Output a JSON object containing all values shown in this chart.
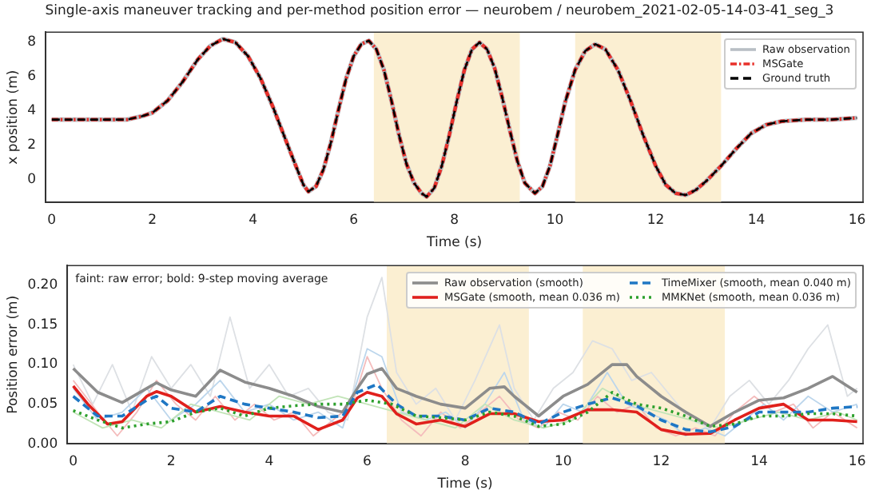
{
  "chart_data": [
    {
      "type": "line",
      "title": "Single-axis maneuver tracking and per-method position error — neurobem / neurobem_2021-02-05-14-03-41_seg_3",
      "xlabel": "Time (s)",
      "ylabel": "x position (m)",
      "xlim": [
        -0.12,
        16.12
      ],
      "xticks": [
        0,
        2,
        4,
        6,
        8,
        10,
        12,
        14,
        16
      ],
      "ylim": [
        -1.33,
        8.6
      ],
      "yticks": [
        0,
        2,
        4,
        6,
        8
      ],
      "legend": "top right",
      "grid": false,
      "bands": [
        {
          "axis": "x",
          "from": 6.4,
          "to": 9.3,
          "color": "#fbefd2"
        },
        {
          "axis": "x",
          "from": 10.4,
          "to": 13.3,
          "color": "#fbefd2"
        }
      ],
      "x": [
        0,
        0.5,
        1,
        1.5,
        1.8,
        2.0,
        2.3,
        2.6,
        2.9,
        3.15,
        3.4,
        3.65,
        3.9,
        4.15,
        4.4,
        4.65,
        4.85,
        5.0,
        5.1,
        5.25,
        5.4,
        5.55,
        5.7,
        5.85,
        6.0,
        6.15,
        6.3,
        6.45,
        6.6,
        6.75,
        6.9,
        7.05,
        7.2,
        7.35,
        7.45,
        7.6,
        7.75,
        7.9,
        8.05,
        8.2,
        8.35,
        8.5,
        8.65,
        8.8,
        8.95,
        9.1,
        9.25,
        9.4,
        9.6,
        9.75,
        9.9,
        10.05,
        10.2,
        10.4,
        10.6,
        10.8,
        11.0,
        11.25,
        11.5,
        11.75,
        12.0,
        12.2,
        12.4,
        12.6,
        12.8,
        13.0,
        13.3,
        13.6,
        13.9,
        14.2,
        14.5,
        15,
        15.5,
        16
      ],
      "series": [
        {
          "name": "Raw observation",
          "color": "#b8bec4",
          "line_style": "solid",
          "values": [
            3.5,
            3.5,
            3.5,
            3.5,
            3.7,
            3.9,
            4.6,
            5.7,
            7.0,
            7.8,
            8.2,
            8.0,
            7.2,
            5.9,
            4.2,
            2.3,
            0.8,
            -0.3,
            -0.7,
            -0.4,
            0.6,
            2.2,
            4.1,
            5.9,
            7.2,
            7.9,
            8.1,
            7.6,
            6.4,
            4.6,
            2.6,
            0.9,
            -0.2,
            -0.8,
            -1.0,
            -0.5,
            0.8,
            2.6,
            4.6,
            6.4,
            7.6,
            8.0,
            7.6,
            6.5,
            4.8,
            2.9,
            1.1,
            -0.2,
            -0.8,
            -0.4,
            0.8,
            2.6,
            4.5,
            6.4,
            7.5,
            7.9,
            7.6,
            6.4,
            4.6,
            2.6,
            0.8,
            -0.3,
            -0.8,
            -0.9,
            -0.6,
            -0.1,
            0.8,
            1.8,
            2.7,
            3.2,
            3.4,
            3.5,
            3.5,
            3.6
          ]
        },
        {
          "name": "MSGate",
          "color": "#e8302a",
          "line_style": "dashdot",
          "values": [
            3.5,
            3.5,
            3.5,
            3.5,
            3.7,
            3.9,
            4.6,
            5.7,
            7.0,
            7.8,
            8.2,
            8.0,
            7.2,
            5.9,
            4.2,
            2.3,
            0.8,
            -0.3,
            -0.7,
            -0.4,
            0.6,
            2.2,
            4.1,
            5.9,
            7.2,
            7.9,
            8.1,
            7.6,
            6.4,
            4.6,
            2.6,
            0.9,
            -0.2,
            -0.8,
            -1.0,
            -0.5,
            0.8,
            2.6,
            4.6,
            6.4,
            7.6,
            8.0,
            7.6,
            6.5,
            4.8,
            2.9,
            1.1,
            -0.2,
            -0.8,
            -0.4,
            0.8,
            2.6,
            4.5,
            6.4,
            7.5,
            7.9,
            7.6,
            6.4,
            4.6,
            2.6,
            0.8,
            -0.3,
            -0.8,
            -0.9,
            -0.6,
            -0.1,
            0.8,
            1.8,
            2.7,
            3.2,
            3.4,
            3.5,
            3.5,
            3.6
          ]
        },
        {
          "name": "Ground truth",
          "color": "#000000",
          "line_style": "dashed",
          "values": [
            3.5,
            3.5,
            3.5,
            3.5,
            3.7,
            3.9,
            4.6,
            5.7,
            7.0,
            7.8,
            8.2,
            8.0,
            7.2,
            5.9,
            4.2,
            2.3,
            0.8,
            -0.3,
            -0.7,
            -0.4,
            0.6,
            2.2,
            4.1,
            5.9,
            7.2,
            7.9,
            8.1,
            7.6,
            6.4,
            4.6,
            2.6,
            0.9,
            -0.2,
            -0.8,
            -1.0,
            -0.5,
            0.8,
            2.6,
            4.6,
            6.4,
            7.6,
            8.0,
            7.6,
            6.5,
            4.8,
            2.9,
            1.1,
            -0.2,
            -0.8,
            -0.4,
            0.8,
            2.6,
            4.5,
            6.4,
            7.5,
            7.9,
            7.6,
            6.4,
            4.6,
            2.6,
            0.8,
            -0.3,
            -0.8,
            -0.9,
            -0.6,
            -0.1,
            0.8,
            1.8,
            2.7,
            3.2,
            3.4,
            3.5,
            3.5,
            3.6
          ]
        }
      ]
    },
    {
      "type": "line",
      "xlabel": "Time (s)",
      "ylabel": "Position error (m)",
      "xlim": [
        -0.12,
        16.12
      ],
      "xticks": [
        0,
        2,
        4,
        6,
        8,
        10,
        12,
        14,
        16
      ],
      "ylim": [
        0,
        0.225
      ],
      "yticks": [
        {
          "value": 0,
          "label": "0.00"
        },
        {
          "value": 0.05,
          "label": "0.05"
        },
        {
          "value": 0.1,
          "label": "0.10"
        },
        {
          "value": 0.15,
          "label": "0.15"
        },
        {
          "value": 0.2,
          "label": "0.20"
        }
      ],
      "legend": "top right",
      "grid": false,
      "annotations": [
        "faint: raw error; bold: 9-step moving average"
      ],
      "bands": [
        {
          "axis": "x",
          "from": 6.4,
          "to": 9.3,
          "color": "#fbefd2"
        },
        {
          "axis": "x",
          "from": 10.4,
          "to": 13.3,
          "color": "#fbefd2"
        }
      ],
      "series": [
        {
          "color": "#dde0e4",
          "line_style": "solid",
          "x": [
            0,
            0.4,
            0.8,
            1.2,
            1.6,
            2,
            2.4,
            2.8,
            3.2,
            3.6,
            4,
            4.4,
            4.8,
            5.2,
            5.6,
            6,
            6.3,
            6.6,
            7,
            7.4,
            7.8,
            8.2,
            8.7,
            9,
            9.4,
            9.8,
            10.2,
            10.6,
            11,
            11.4,
            11.8,
            12.2,
            12.6,
            13,
            13.4,
            13.8,
            14.2,
            14.6,
            15,
            15.4,
            15.8,
            16
          ],
          "values": [
            0.1,
            0.05,
            0.1,
            0.04,
            0.11,
            0.07,
            0.1,
            0.06,
            0.16,
            0.07,
            0.1,
            0.06,
            0.07,
            0.04,
            0.03,
            0.16,
            0.21,
            0.09,
            0.05,
            0.07,
            0.03,
            0.08,
            0.15,
            0.07,
            0.03,
            0.07,
            0.09,
            0.13,
            0.12,
            0.08,
            0.09,
            0.06,
            0.03,
            0.02,
            0.06,
            0.08,
            0.05,
            0.08,
            0.12,
            0.15,
            0.06,
            0.07
          ]
        },
        {
          "color": "#f4bcbc",
          "line_style": "solid",
          "x": [
            0,
            0.5,
            0.9,
            1.3,
            1.7,
            2.1,
            2.5,
            2.9,
            3.3,
            3.7,
            4.1,
            4.5,
            4.9,
            5.3,
            5.7,
            6,
            6.3,
            6.7,
            7.1,
            7.5,
            7.9,
            8.3,
            8.7,
            9.1,
            9.5,
            9.9,
            10.3,
            10.7,
            11.1,
            11.5,
            11.9,
            12.3,
            12.7,
            13.1,
            13.5,
            13.9,
            14.3,
            14.7,
            15.1,
            15.5,
            16
          ],
          "values": [
            0.08,
            0.04,
            0.01,
            0.04,
            0.08,
            0.05,
            0.03,
            0.06,
            0.03,
            0.05,
            0.03,
            0.04,
            0.01,
            0.03,
            0.05,
            0.11,
            0.07,
            0.03,
            0.01,
            0.04,
            0.02,
            0.04,
            0.06,
            0.03,
            0.02,
            0.04,
            0.03,
            0.06,
            0.04,
            0.05,
            0.02,
            0.01,
            0.02,
            0.01,
            0.04,
            0.06,
            0.04,
            0.05,
            0.02,
            0.04,
            0.02
          ]
        },
        {
          "color": "#bcd6ec",
          "line_style": "solid",
          "x": [
            0,
            0.5,
            1,
            1.5,
            2,
            2.5,
            3,
            3.5,
            4,
            4.5,
            5,
            5.5,
            6,
            6.3,
            6.7,
            7.2,
            7.6,
            8,
            8.4,
            8.8,
            9.2,
            9.6,
            10,
            10.4,
            10.9,
            11.3,
            11.7,
            12.1,
            12.5,
            12.9,
            13.3,
            13.7,
            14.1,
            14.5,
            15,
            15.5,
            16
          ],
          "values": [
            0.07,
            0.03,
            0.04,
            0.07,
            0.03,
            0.05,
            0.08,
            0.04,
            0.05,
            0.03,
            0.04,
            0.02,
            0.12,
            0.11,
            0.04,
            0.03,
            0.04,
            0.02,
            0.05,
            0.09,
            0.03,
            0.02,
            0.05,
            0.04,
            0.09,
            0.05,
            0.04,
            0.03,
            0.01,
            0.02,
            0.01,
            0.03,
            0.05,
            0.03,
            0.06,
            0.04,
            0.05
          ]
        },
        {
          "color": "#c2e4b8",
          "line_style": "solid",
          "x": [
            0,
            0.6,
            1.2,
            1.8,
            2.4,
            3,
            3.6,
            4.2,
            4.8,
            5.4,
            6,
            6.6,
            7.2,
            7.8,
            8.4,
            9,
            9.6,
            10.2,
            10.8,
            11.4,
            12,
            12.6,
            13.2,
            13.8,
            14.4,
            15,
            15.6,
            16
          ],
          "values": [
            0.04,
            0.02,
            0.03,
            0.02,
            0.05,
            0.04,
            0.03,
            0.06,
            0.05,
            0.06,
            0.05,
            0.04,
            0.03,
            0.02,
            0.05,
            0.03,
            0.02,
            0.03,
            0.07,
            0.05,
            0.04,
            0.03,
            0.02,
            0.03,
            0.04,
            0.03,
            0.04,
            0.03
          ]
        },
        {
          "name": "Raw observation (smooth)",
          "color": "#8c8c8c",
          "line_style": "solid",
          "x": [
            0,
            0.5,
            1,
            1.5,
            1.7,
            2,
            2.5,
            3,
            3.5,
            4,
            4.5,
            5,
            5.5,
            5.8,
            6,
            6.3,
            6.6,
            7,
            7.5,
            8,
            8.5,
            8.8,
            9,
            9.5,
            10,
            10.5,
            11,
            11.3,
            11.5,
            12,
            12.5,
            13,
            13.5,
            14,
            14.5,
            15,
            15.5,
            16
          ],
          "values": [
            0.095,
            0.065,
            0.052,
            0.07,
            0.077,
            0.068,
            0.06,
            0.093,
            0.078,
            0.07,
            0.06,
            0.047,
            0.04,
            0.07,
            0.088,
            0.095,
            0.07,
            0.06,
            0.05,
            0.045,
            0.07,
            0.072,
            0.06,
            0.035,
            0.06,
            0.075,
            0.1,
            0.1,
            0.085,
            0.06,
            0.04,
            0.022,
            0.04,
            0.055,
            0.058,
            0.07,
            0.085,
            0.065
          ]
        },
        {
          "name": "MSGate (smooth, mean 0.036 m)",
          "color": "#e0201c",
          "line_style": "solid",
          "x": [
            0,
            0.3,
            0.7,
            1,
            1.5,
            1.7,
            2,
            2.5,
            3,
            3.5,
            4,
            4.5,
            5,
            5.5,
            5.8,
            6,
            6.3,
            6.6,
            7,
            7.5,
            8,
            8.5,
            9,
            9.5,
            10,
            10.5,
            11,
            11.5,
            12,
            12.5,
            13,
            13.5,
            14,
            14.5,
            15,
            15.5,
            16
          ],
          "values": [
            0.073,
            0.05,
            0.025,
            0.028,
            0.06,
            0.066,
            0.06,
            0.04,
            0.047,
            0.04,
            0.035,
            0.035,
            0.018,
            0.03,
            0.058,
            0.065,
            0.06,
            0.038,
            0.025,
            0.03,
            0.022,
            0.038,
            0.038,
            0.028,
            0.03,
            0.043,
            0.043,
            0.04,
            0.018,
            0.012,
            0.013,
            0.03,
            0.045,
            0.05,
            0.03,
            0.03,
            0.028
          ]
        },
        {
          "name": "TimeMixer (smooth, mean 0.040 m)",
          "color": "#1f77c4",
          "line_style": "dashed",
          "x": [
            0,
            0.5,
            1,
            1.5,
            1.7,
            2,
            2.5,
            3,
            3.5,
            4,
            4.5,
            5,
            5.5,
            5.8,
            6.2,
            6.6,
            7,
            7.5,
            8,
            8.5,
            9,
            9.5,
            10,
            10.5,
            11,
            11.5,
            12,
            12.5,
            13,
            13.5,
            14,
            14.5,
            15,
            15.5,
            16
          ],
          "values": [
            0.06,
            0.035,
            0.035,
            0.055,
            0.06,
            0.045,
            0.04,
            0.06,
            0.05,
            0.045,
            0.04,
            0.033,
            0.035,
            0.065,
            0.075,
            0.05,
            0.035,
            0.035,
            0.03,
            0.045,
            0.04,
            0.025,
            0.04,
            0.05,
            0.058,
            0.048,
            0.03,
            0.018,
            0.015,
            0.022,
            0.04,
            0.04,
            0.04,
            0.045,
            0.047
          ]
        },
        {
          "name": "MMKNet (smooth, mean 0.036 m)",
          "color": "#2ca02c",
          "line_style": "dotted",
          "x": [
            0,
            0.5,
            1,
            1.5,
            2,
            2.5,
            3,
            3.5,
            4,
            4.5,
            5,
            5.5,
            6,
            6.5,
            7,
            7.5,
            8,
            8.5,
            9,
            9.5,
            10,
            10.5,
            11,
            11.5,
            12,
            12.5,
            13,
            13.5,
            14,
            14.5,
            15,
            15.5,
            16
          ],
          "values": [
            0.042,
            0.03,
            0.02,
            0.025,
            0.028,
            0.04,
            0.045,
            0.035,
            0.045,
            0.048,
            0.05,
            0.05,
            0.055,
            0.05,
            0.035,
            0.033,
            0.03,
            0.04,
            0.035,
            0.022,
            0.025,
            0.04,
            0.065,
            0.05,
            0.045,
            0.035,
            0.022,
            0.025,
            0.035,
            0.035,
            0.038,
            0.038,
            0.035
          ]
        }
      ]
    }
  ]
}
